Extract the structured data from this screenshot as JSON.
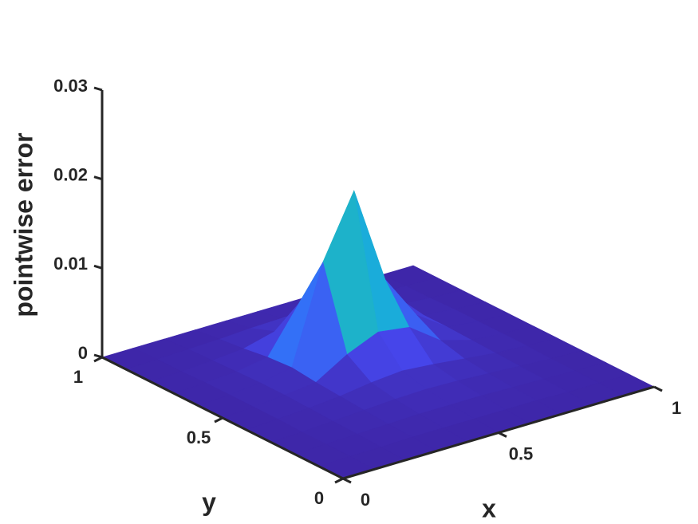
{
  "chart_data": {
    "type": "surface",
    "xlabel": "x",
    "ylabel": "y",
    "zlabel": "pointwise error",
    "colormap": "parula",
    "x": [
      0,
      0.1,
      0.2,
      0.3,
      0.4,
      0.5,
      0.6,
      0.7,
      0.8,
      0.9,
      1
    ],
    "y": [
      0,
      0.1,
      0.2,
      0.3,
      0.4,
      0.5,
      0.6,
      0.7,
      0.8,
      0.9,
      1
    ],
    "z": [
      [
        0,
        0,
        0,
        0,
        0,
        0,
        0,
        0,
        0,
        0,
        0
      ],
      [
        0,
        0.0001,
        0.0001,
        0.0002,
        0.0002,
        0.0002,
        0.0002,
        0.0002,
        0.0001,
        0.0001,
        0
      ],
      [
        0,
        0.0001,
        0.0002,
        0.0003,
        0.0004,
        0.0004,
        0.0004,
        0.0003,
        0.0002,
        0.0001,
        0
      ],
      [
        0,
        0.0001,
        0.0003,
        0.0005,
        0.0007,
        0.0008,
        0.0007,
        0.0005,
        0.0003,
        0.0001,
        0
      ],
      [
        0,
        0.0002,
        0.0004,
        0.0007,
        0.0012,
        0.0015,
        0.0012,
        0.0008,
        0.0004,
        0.0002,
        0
      ],
      [
        0,
        0.0002,
        0.0005,
        0.0009,
        0.003,
        0.0045,
        0.004,
        0.0015,
        0.0005,
        0.0002,
        0
      ],
      [
        0,
        0.0002,
        0.0005,
        0.0012,
        0.012,
        0.019,
        0.008,
        0.003,
        0.0006,
        0.0002,
        0
      ],
      [
        0,
        0.0002,
        0.0004,
        0.001,
        0.006,
        0.007,
        0.0095,
        0.004,
        0.0006,
        0.0002,
        0
      ],
      [
        0,
        0.0001,
        0.0003,
        0.0006,
        0.0015,
        0.002,
        0.0025,
        0.0012,
        0.0004,
        0.0001,
        0
      ],
      [
        0,
        0.0001,
        0.0002,
        0.0003,
        0.0005,
        0.0006,
        0.0006,
        0.0004,
        0.0002,
        0.0001,
        0
      ],
      [
        0,
        0,
        0,
        0,
        0,
        0,
        0,
        0,
        0,
        0,
        0
      ]
    ],
    "xlim": [
      0,
      1
    ],
    "ylim": [
      0,
      1
    ],
    "zlim": [
      0,
      0.03
    ],
    "xticks": [
      0,
      0.5,
      1
    ],
    "yticks": [
      0,
      0.5,
      1
    ],
    "zticks": [
      0,
      0.01,
      0.02,
      0.03
    ]
  }
}
